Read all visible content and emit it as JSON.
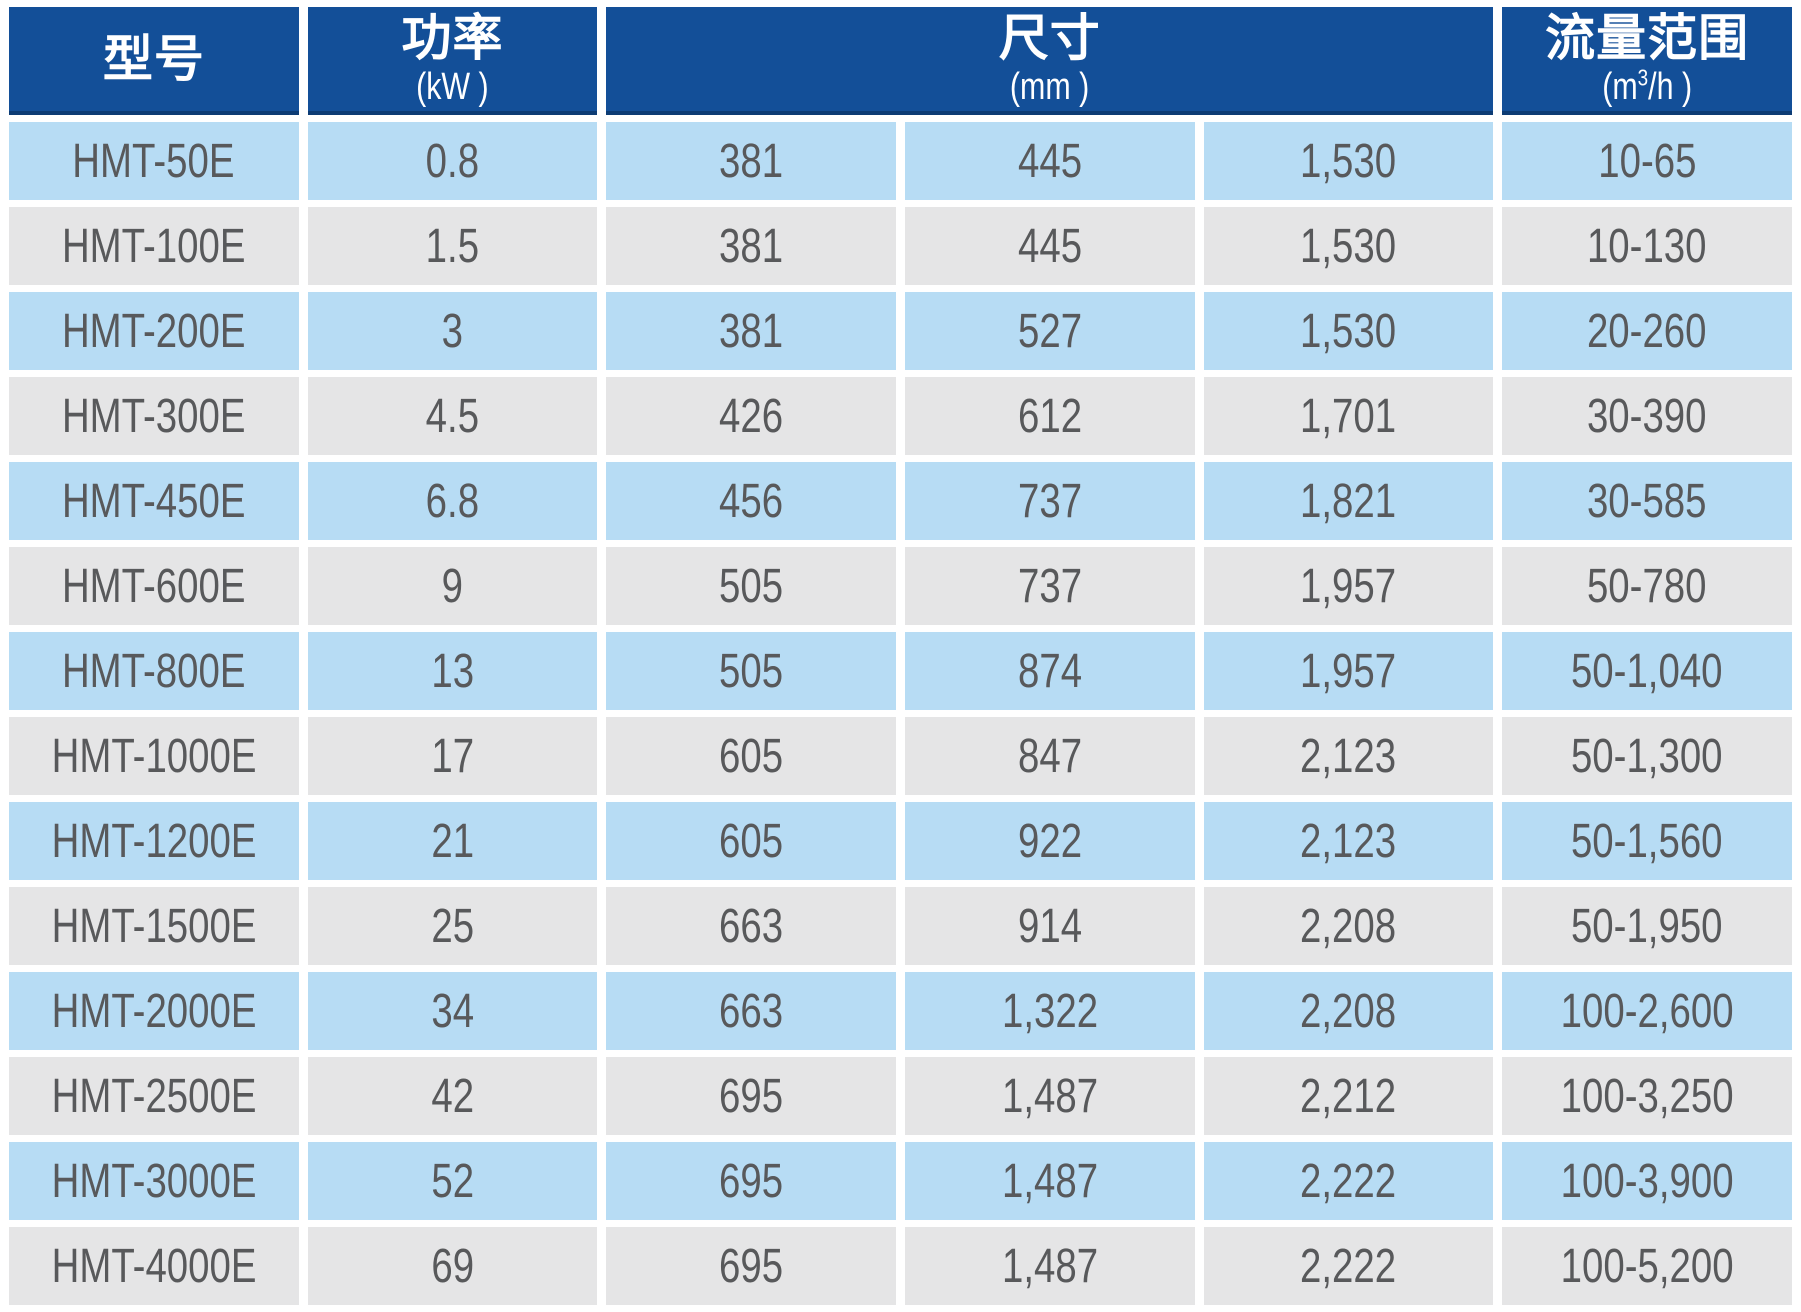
{
  "colors": {
    "header_bg": "#134f98",
    "header_edge": "#0d3c74",
    "row_blue": "#b7dcf4",
    "row_gray": "#e5e5e6",
    "text_dark": "#58595b",
    "header_text": "#ffffff",
    "page_bg": "#ffffff"
  },
  "table": {
    "headers": {
      "model": {
        "title": "型号"
      },
      "power": {
        "title": "功率",
        "unit": "(kW )"
      },
      "dimensions": {
        "title": "尺寸",
        "unit": "(mm )"
      },
      "flow": {
        "title": "流量范围",
        "unit_prefix": "(m",
        "unit_sup": "3",
        "unit_suffix": "/h )"
      }
    },
    "rows": [
      {
        "model": "HMT-50E",
        "power": "0.8",
        "dim1": "381",
        "dim2": "445",
        "dim3": "1,530",
        "flow": "10-65"
      },
      {
        "model": "HMT-100E",
        "power": "1.5",
        "dim1": "381",
        "dim2": "445",
        "dim3": "1,530",
        "flow": "10-130"
      },
      {
        "model": "HMT-200E",
        "power": "3",
        "dim1": "381",
        "dim2": "527",
        "dim3": "1,530",
        "flow": "20-260"
      },
      {
        "model": "HMT-300E",
        "power": "4.5",
        "dim1": "426",
        "dim2": "612",
        "dim3": "1,701",
        "flow": "30-390"
      },
      {
        "model": "HMT-450E",
        "power": "6.8",
        "dim1": "456",
        "dim2": "737",
        "dim3": "1,821",
        "flow": "30-585"
      },
      {
        "model": "HMT-600E",
        "power": "9",
        "dim1": "505",
        "dim2": "737",
        "dim3": "1,957",
        "flow": "50-780"
      },
      {
        "model": "HMT-800E",
        "power": "13",
        "dim1": "505",
        "dim2": "874",
        "dim3": "1,957",
        "flow": "50-1,040"
      },
      {
        "model": "HMT-1000E",
        "power": "17",
        "dim1": "605",
        "dim2": "847",
        "dim3": "2,123",
        "flow": "50-1,300"
      },
      {
        "model": "HMT-1200E",
        "power": "21",
        "dim1": "605",
        "dim2": "922",
        "dim3": "2,123",
        "flow": "50-1,560"
      },
      {
        "model": "HMT-1500E",
        "power": "25",
        "dim1": "663",
        "dim2": "914",
        "dim3": "2,208",
        "flow": "50-1,950"
      },
      {
        "model": "HMT-2000E",
        "power": "34",
        "dim1": "663",
        "dim2": "1,322",
        "dim3": "2,208",
        "flow": "100-2,600"
      },
      {
        "model": "HMT-2500E",
        "power": "42",
        "dim1": "695",
        "dim2": "1,487",
        "dim3": "2,212",
        "flow": "100-3,250"
      },
      {
        "model": "HMT-3000E",
        "power": "52",
        "dim1": "695",
        "dim2": "1,487",
        "dim3": "2,222",
        "flow": "100-3,900"
      },
      {
        "model": "HMT-4000E",
        "power": "69",
        "dim1": "695",
        "dim2": "1,487",
        "dim3": "2,222",
        "flow": "100-5,200"
      }
    ]
  }
}
